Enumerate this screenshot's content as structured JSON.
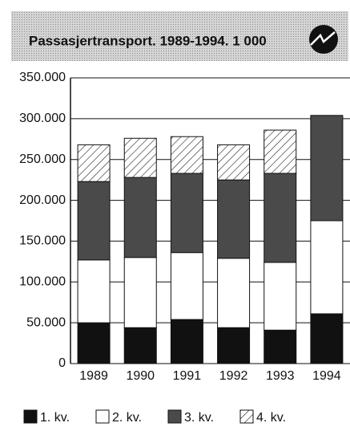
{
  "chart_data": {
    "type": "stacked_bar",
    "title": "Passasjertransport. 1989-1994. 1 000",
    "categories": [
      "1989",
      "1990",
      "1991",
      "1992",
      "1993",
      "1994"
    ],
    "series": [
      {
        "name": "1. kv.",
        "color": "#111111",
        "values": [
          50000,
          44000,
          54000,
          44000,
          41000,
          61000
        ]
      },
      {
        "name": "2. kv.",
        "color": "#ffffff",
        "values": [
          77000,
          86000,
          82000,
          85000,
          83000,
          114000
        ]
      },
      {
        "name": "3. kv.",
        "color": "#4a4a4a",
        "values": [
          96000,
          98000,
          97000,
          96000,
          109000,
          129000
        ]
      },
      {
        "name": "4. kv.",
        "color": "#ffffff",
        "hatch": true,
        "values": [
          45000,
          48000,
          45000,
          43000,
          53000,
          null
        ]
      }
    ],
    "ylim": [
      0,
      350000
    ],
    "yticks": [
      0,
      {
        "value": 50000,
        "label": "50.000"
      },
      {
        "value": 100000,
        "label": "100.000"
      },
      {
        "value": 150000,
        "label": "150.000"
      },
      {
        "value": 200000,
        "label": "200.000"
      },
      {
        "value": 250000,
        "label": "250.000"
      },
      {
        "value": 300000,
        "label": "300.000"
      },
      {
        "value": 350000,
        "label": "350.000"
      }
    ],
    "grid": true
  }
}
